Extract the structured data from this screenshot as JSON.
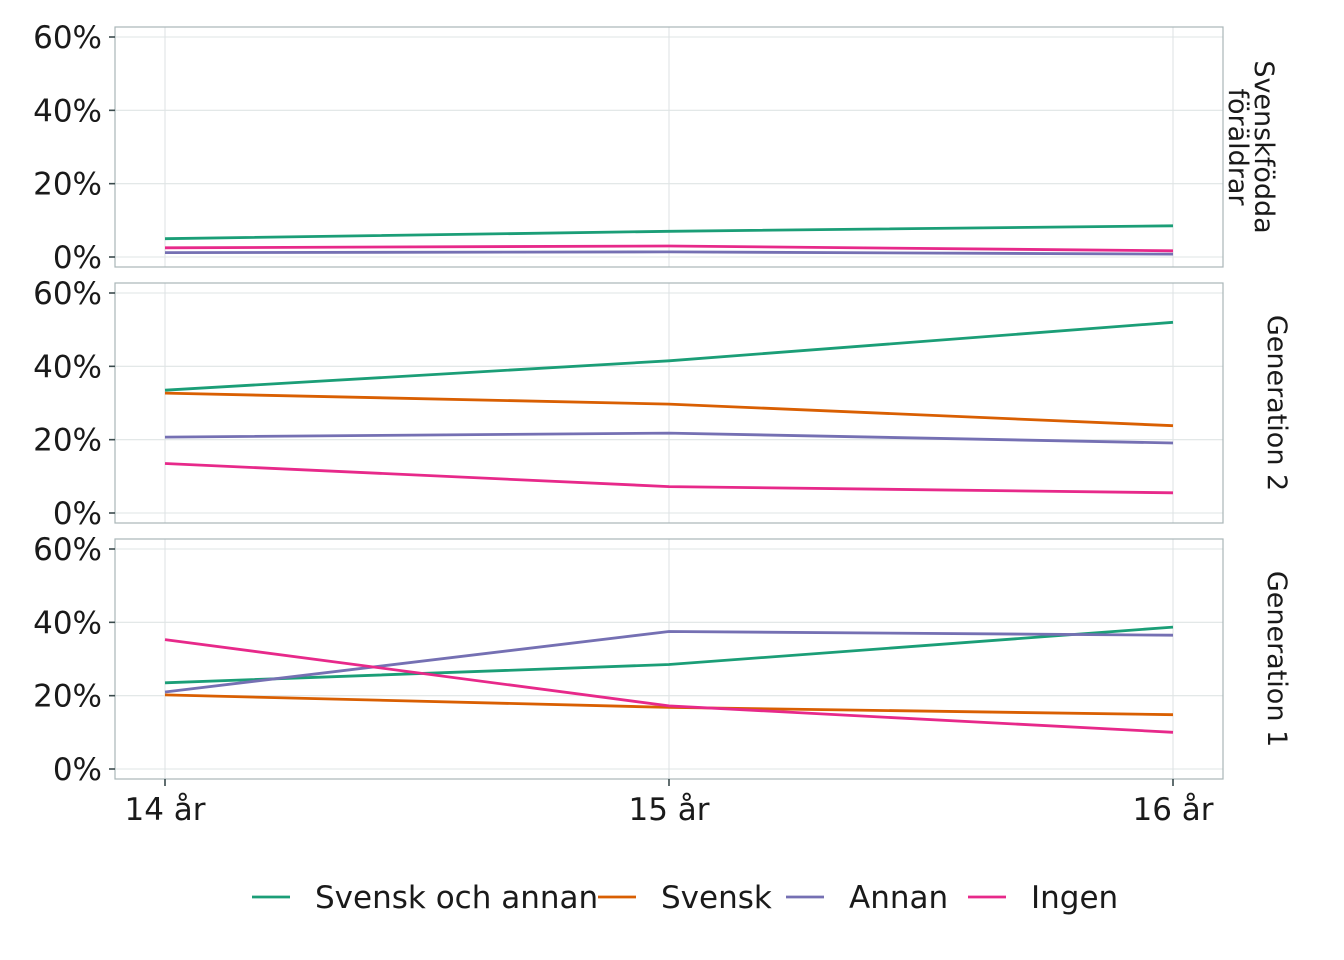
{
  "chart_data": {
    "type": "line",
    "x": [
      "14 år",
      "15 år",
      "16 år"
    ],
    "y_ticks": [
      "0%",
      "20%",
      "40%",
      "60%"
    ],
    "ylim": [
      0,
      0.6
    ],
    "grid": true,
    "legend_position": "bottom",
    "colors": {
      "Svensk och annan": "#1b9e77",
      "Svensk": "#d95f02",
      "Annan": "#7570b3",
      "Ingen": "#e7298a"
    },
    "legend": [
      "Svensk och annan",
      "Svensk",
      "Annan",
      "Ingen"
    ],
    "panels": [
      {
        "label_lines": [
          "Svenskfödda",
          "föräldrar"
        ],
        "series": [
          {
            "name": "Svensk och annan",
            "values": [
              0.05,
              0.07,
              0.085
            ]
          },
          {
            "name": "Ingen",
            "values": [
              0.025,
              0.03,
              0.017
            ]
          },
          {
            "name": "Annan",
            "values": [
              0.012,
              0.014,
              0.008
            ]
          }
        ]
      },
      {
        "label_lines": [
          "Generation 2"
        ],
        "series": [
          {
            "name": "Svensk och annan",
            "values": [
              0.335,
              0.415,
              0.52
            ]
          },
          {
            "name": "Svensk",
            "values": [
              0.327,
              0.297,
              0.238
            ]
          },
          {
            "name": "Annan",
            "values": [
              0.207,
              0.218,
              0.191
            ]
          },
          {
            "name": "Ingen",
            "values": [
              0.135,
              0.072,
              0.055
            ]
          }
        ]
      },
      {
        "label_lines": [
          "Generation 1"
        ],
        "series": [
          {
            "name": "Svensk och annan",
            "values": [
              0.235,
              0.285,
              0.387
            ]
          },
          {
            "name": "Svensk",
            "values": [
              0.202,
              0.168,
              0.148
            ]
          },
          {
            "name": "Annan",
            "values": [
              0.21,
              0.375,
              0.365
            ]
          },
          {
            "name": "Ingen",
            "values": [
              0.353,
              0.172,
              0.1
            ]
          }
        ]
      }
    ]
  }
}
